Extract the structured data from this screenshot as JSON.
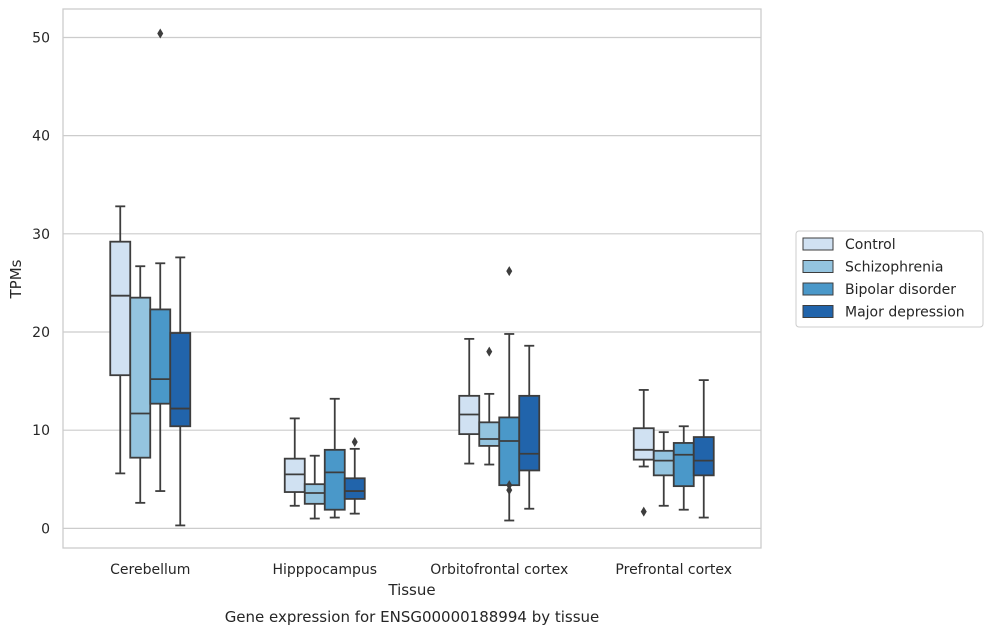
{
  "caption": "Gene expression for ENSG00000188994 by tissue",
  "chart_data": {
    "type": "box",
    "xlabel": "Tissue",
    "ylabel": "TPMs",
    "ylim": [
      -2,
      52.9
    ],
    "yticks": [
      0,
      10,
      20,
      30,
      40,
      50
    ],
    "grid": "horizontal",
    "legend_position": "right",
    "categories": [
      "Cerebellum",
      "Hipppocampus",
      "Orbitofrontal cortex",
      "Prefrontal cortex"
    ],
    "series": [
      {
        "name": "Control",
        "color": "#d0e1f2",
        "boxes": [
          {
            "whislo": 5.6,
            "q1": 15.6,
            "med": 23.7,
            "q3": 29.2,
            "whishi": 32.8,
            "fliers": []
          },
          {
            "whislo": 2.3,
            "q1": 3.7,
            "med": 5.5,
            "q3": 7.1,
            "whishi": 11.2,
            "fliers": []
          },
          {
            "whislo": 6.6,
            "q1": 9.6,
            "med": 11.6,
            "q3": 13.5,
            "whishi": 19.3,
            "fliers": []
          },
          {
            "whislo": 6.3,
            "q1": 7.0,
            "med": 8.0,
            "q3": 10.2,
            "whishi": 14.1,
            "fliers": [
              1.7
            ]
          }
        ]
      },
      {
        "name": "Schizophrenia",
        "color": "#94c4df",
        "boxes": [
          {
            "whislo": 2.6,
            "q1": 7.2,
            "med": 11.7,
            "q3": 23.5,
            "whishi": 26.7,
            "fliers": []
          },
          {
            "whislo": 1.0,
            "q1": 2.5,
            "med": 3.6,
            "q3": 4.5,
            "whishi": 7.4,
            "fliers": []
          },
          {
            "whislo": 6.5,
            "q1": 8.4,
            "med": 9.1,
            "q3": 10.8,
            "whishi": 13.7,
            "fliers": [
              18.0
            ]
          },
          {
            "whislo": 2.3,
            "q1": 5.4,
            "med": 6.9,
            "q3": 7.9,
            "whishi": 9.8,
            "fliers": []
          }
        ]
      },
      {
        "name": "Bipolar disorder",
        "color": "#4a98c9",
        "boxes": [
          {
            "whislo": 3.8,
            "q1": 12.7,
            "med": 15.2,
            "q3": 22.3,
            "whishi": 27.0,
            "fliers": [
              50.4
            ]
          },
          {
            "whislo": 1.1,
            "q1": 1.9,
            "med": 5.7,
            "q3": 8.0,
            "whishi": 13.2,
            "fliers": []
          },
          {
            "whislo": 0.8,
            "q1": 4.4,
            "med": 8.9,
            "q3": 11.3,
            "whishi": 19.8,
            "fliers": [
              4.4,
              3.9,
              26.2
            ]
          },
          {
            "whislo": 1.9,
            "q1": 4.3,
            "med": 7.5,
            "q3": 8.7,
            "whishi": 10.4,
            "fliers": []
          }
        ]
      },
      {
        "name": "Major depression",
        "color": "#2164ab",
        "boxes": [
          {
            "whislo": 0.3,
            "q1": 10.4,
            "med": 12.2,
            "q3": 19.9,
            "whishi": 27.6,
            "fliers": []
          },
          {
            "whislo": 1.5,
            "q1": 3.0,
            "med": 3.8,
            "q3": 5.1,
            "whishi": 8.1,
            "fliers": [
              8.8
            ]
          },
          {
            "whislo": 2.0,
            "q1": 5.9,
            "med": 7.6,
            "q3": 13.5,
            "whishi": 18.6,
            "fliers": []
          },
          {
            "whislo": 1.1,
            "q1": 5.4,
            "med": 6.9,
            "q3": 9.3,
            "whishi": 15.1,
            "fliers": []
          }
        ]
      }
    ]
  }
}
